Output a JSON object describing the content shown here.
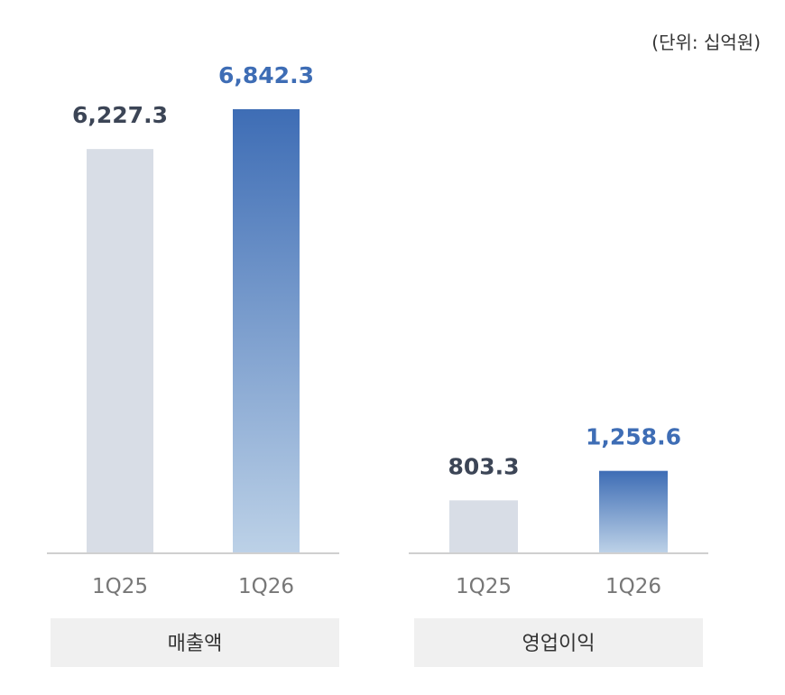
{
  "unit_note": "(단위: 십억원)",
  "colors": {
    "prev_bar": "#d8dde6",
    "curr_top": "#3e6db5",
    "curr_bottom": "#bcd1e7",
    "prev_label": "#3c4556",
    "curr_label": "#3e6db5",
    "baseline": "#d0d0d0",
    "metric_box": "#f0f0f0"
  },
  "chart_data": [
    {
      "type": "bar",
      "title": "매출액",
      "categories": [
        "1Q25",
        "1Q26"
      ],
      "values": [
        6227.3,
        6842.3
      ],
      "value_labels": [
        "6,227.3",
        "6,842.3"
      ]
    },
    {
      "type": "bar",
      "title": "영업이익",
      "categories": [
        "1Q25",
        "1Q26"
      ],
      "values": [
        803.3,
        1258.6
      ],
      "value_labels": [
        "803.3",
        "1,258.6"
      ]
    }
  ]
}
